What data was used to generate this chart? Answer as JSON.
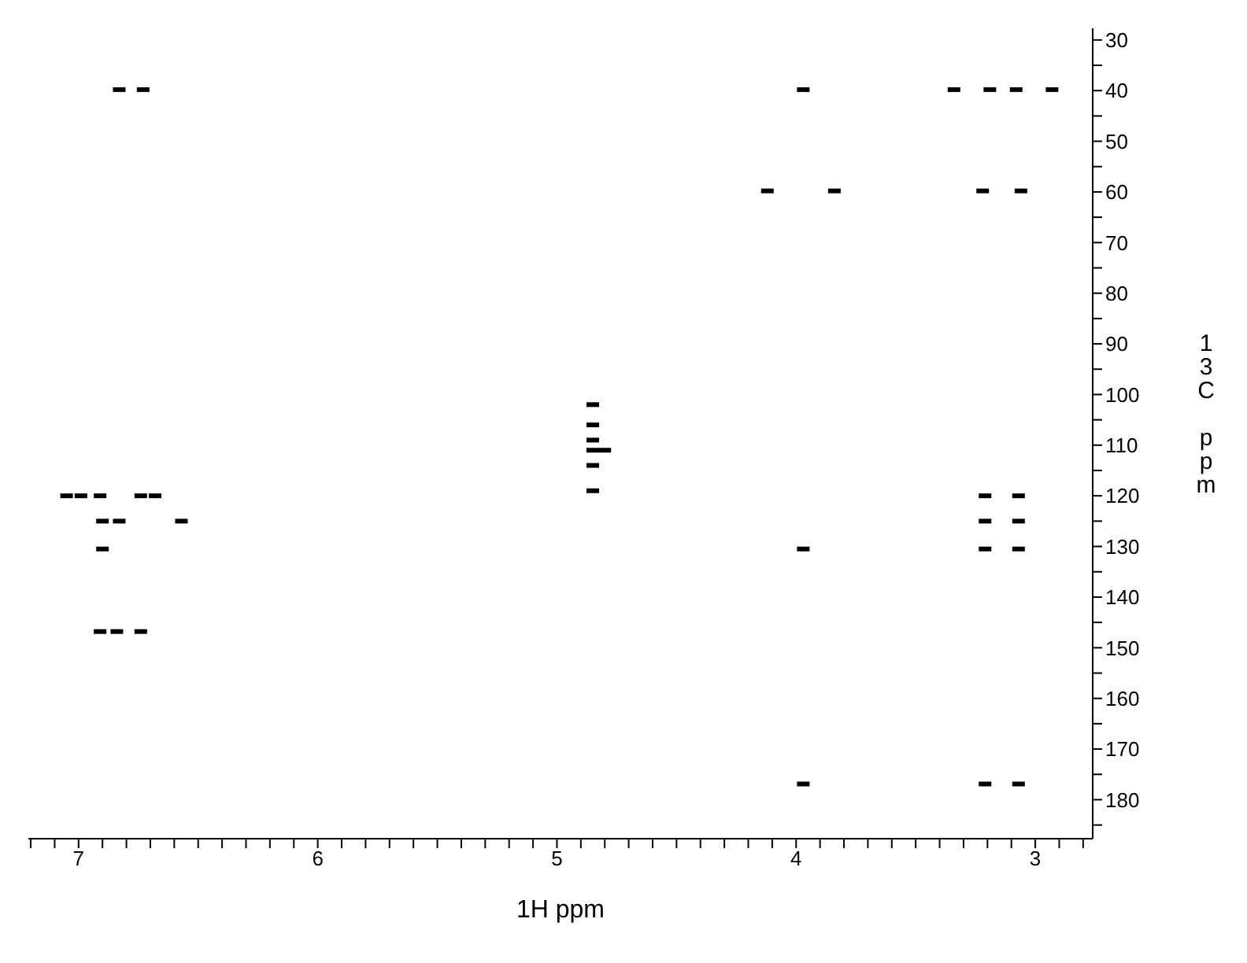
{
  "chart_data": {
    "type": "scatter",
    "xlabel": "1H ppm",
    "ylabel": "13C ppm",
    "color": "#000000",
    "marker": "square",
    "grid": false,
    "xlim": [
      7.21,
      2.76
    ],
    "ylim": [
      187.7,
      27.7
    ],
    "xticks": [
      7,
      6,
      5,
      4,
      3,
      {
        "value": 7.2,
        "label": null
      },
      {
        "value": 7.1,
        "label": null
      },
      {
        "value": 6.9,
        "label": null
      },
      {
        "value": 6.8,
        "label": null
      },
      {
        "value": 6.7,
        "label": null
      },
      {
        "value": 6.6,
        "label": null
      },
      {
        "value": 6.5,
        "label": null
      },
      {
        "value": 6.4,
        "label": null
      },
      {
        "value": 6.3,
        "label": null
      },
      {
        "value": 6.2,
        "label": null
      },
      {
        "value": 6.1,
        "label": null
      },
      {
        "value": 5.9,
        "label": null
      },
      {
        "value": 5.8,
        "label": null
      },
      {
        "value": 5.7,
        "label": null
      },
      {
        "value": 5.6,
        "label": null
      },
      {
        "value": 5.5,
        "label": null
      },
      {
        "value": 5.4,
        "label": null
      },
      {
        "value": 5.3,
        "label": null
      },
      {
        "value": 5.2,
        "label": null
      },
      {
        "value": 5.1,
        "label": null
      },
      {
        "value": 4.9,
        "label": null
      },
      {
        "value": 4.8,
        "label": null
      },
      {
        "value": 4.7,
        "label": null
      },
      {
        "value": 4.6,
        "label": null
      },
      {
        "value": 4.5,
        "label": null
      },
      {
        "value": 4.4,
        "label": null
      },
      {
        "value": 4.3,
        "label": null
      },
      {
        "value": 4.2,
        "label": null
      },
      {
        "value": 4.1,
        "label": null
      },
      {
        "value": 3.9,
        "label": null
      },
      {
        "value": 3.8,
        "label": null
      },
      {
        "value": 3.7,
        "label": null
      },
      {
        "value": 3.6,
        "label": null
      },
      {
        "value": 3.5,
        "label": null
      },
      {
        "value": 3.4,
        "label": null
      },
      {
        "value": 3.3,
        "label": null
      },
      {
        "value": 3.2,
        "label": null
      },
      {
        "value": 3.1,
        "label": null
      },
      {
        "value": 2.9,
        "label": null
      },
      {
        "value": 2.8,
        "label": null
      }
    ],
    "yticks": [
      30,
      40,
      50,
      60,
      70,
      80,
      90,
      100,
      110,
      120,
      130,
      140,
      150,
      160,
      170,
      180,
      {
        "value": 35,
        "label": null
      },
      {
        "value": 45,
        "label": null
      },
      {
        "value": 55,
        "label": null
      },
      {
        "value": 65,
        "label": null
      },
      {
        "value": 75,
        "label": null
      },
      {
        "value": 85,
        "label": null
      },
      {
        "value": 95,
        "label": null
      },
      {
        "value": 105,
        "label": null
      },
      {
        "value": 115,
        "label": null
      },
      {
        "value": 125,
        "label": null
      },
      {
        "value": 135,
        "label": null
      },
      {
        "value": 145,
        "label": null
      },
      {
        "value": 155,
        "label": null
      },
      {
        "value": 165,
        "label": null
      },
      {
        "value": 175,
        "label": null
      },
      {
        "value": 185,
        "label": null
      }
    ],
    "x": [
      6.83,
      6.73,
      3.97,
      3.34,
      3.19,
      3.08,
      2.93,
      4.12,
      3.84,
      3.22,
      3.06,
      4.85,
      4.85,
      4.85,
      4.85,
      4.8,
      4.85,
      4.85,
      7.05,
      6.99,
      6.91,
      6.74,
      6.68,
      3.21,
      3.07,
      6.9,
      6.83,
      6.57,
      3.21,
      3.07,
      6.9,
      3.97,
      3.21,
      3.07,
      6.91,
      6.84,
      6.74,
      3.97,
      3.21,
      3.07
    ],
    "values": [
      39.8,
      39.8,
      39.8,
      39.8,
      39.8,
      39.8,
      39.8,
      59.8,
      59.8,
      59.8,
      59.8,
      102,
      106,
      109,
      111,
      111,
      114,
      119,
      120,
      120,
      120,
      120,
      120,
      120,
      120,
      125,
      125,
      125,
      125,
      125,
      130.5,
      130.5,
      130.5,
      130.5,
      146.8,
      146.8,
      146.8,
      176.9,
      176.9,
      176.9
    ]
  }
}
